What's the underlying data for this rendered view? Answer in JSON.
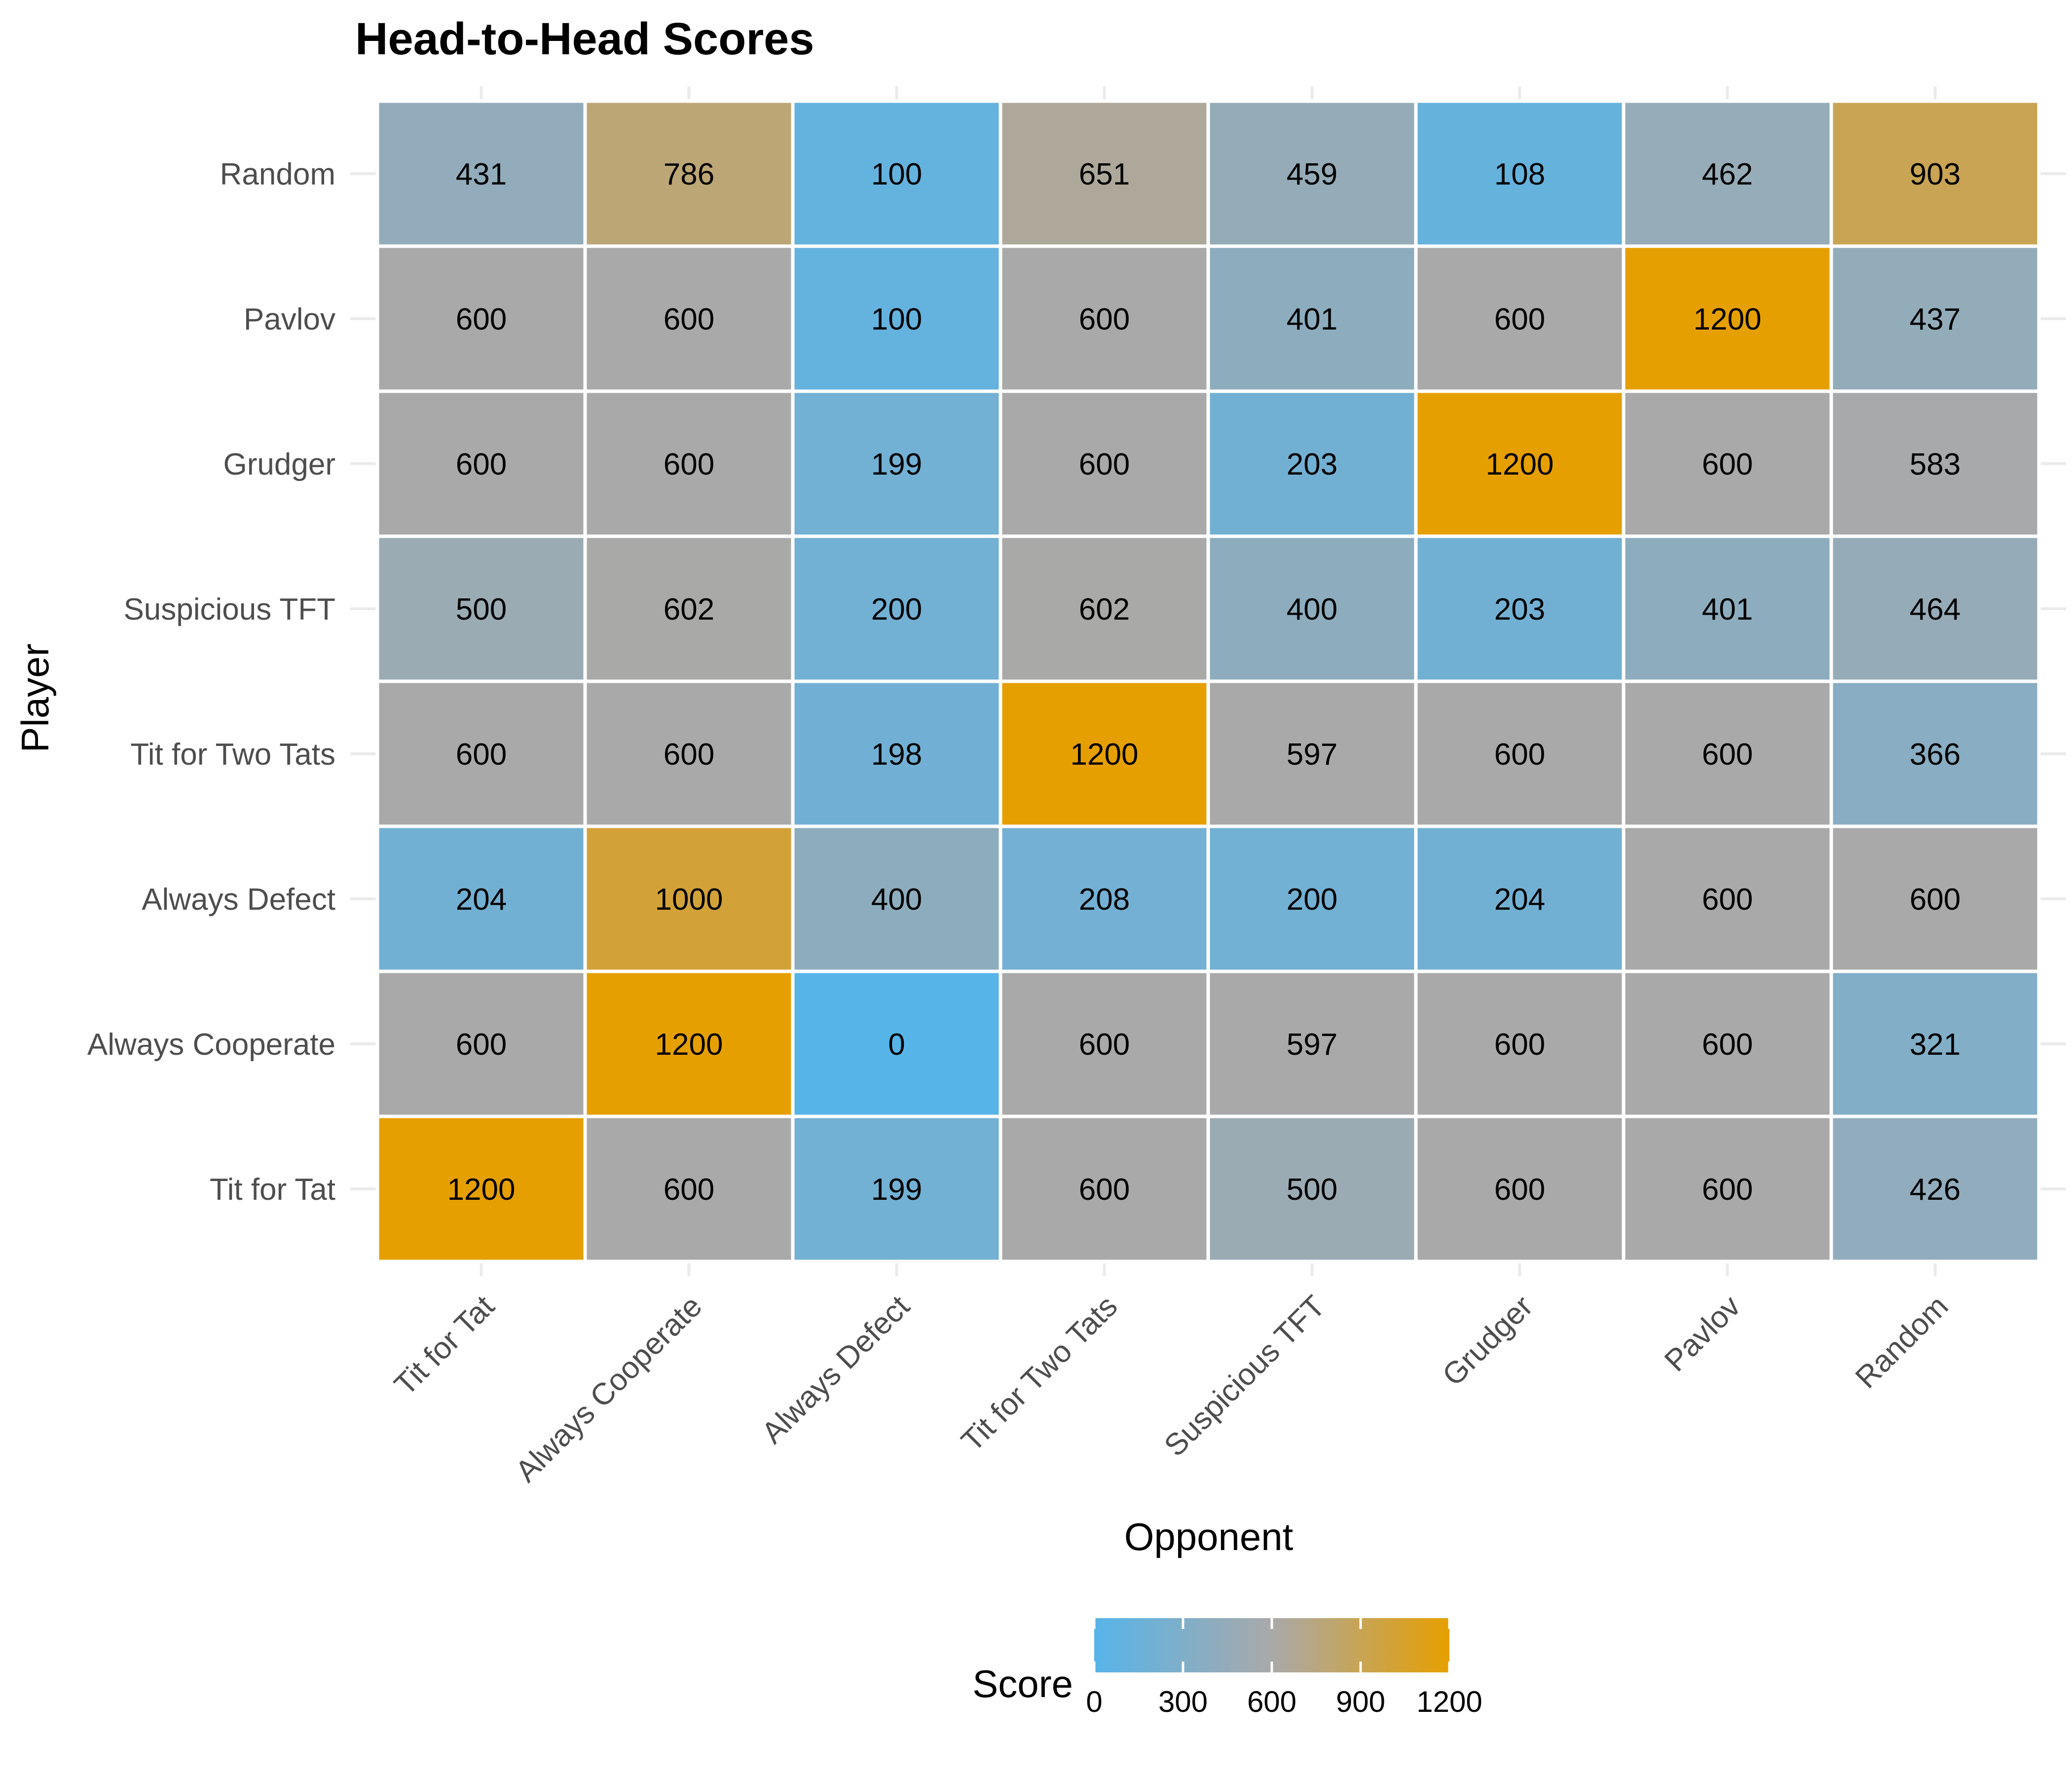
{
  "chart_data": {
    "type": "heatmap",
    "title": "Head-to-Head Scores",
    "xlabel": "Opponent",
    "ylabel": "Player",
    "x_categories": [
      "Tit for Tat",
      "Always Cooperate",
      "Always Defect",
      "Tit for Two Tats",
      "Suspicious TFT",
      "Grudger",
      "Pavlov",
      "Random"
    ],
    "y_categories": [
      "Tit for Tat",
      "Always Cooperate",
      "Always Defect",
      "Tit for Two Tats",
      "Suspicious TFT",
      "Grudger",
      "Pavlov",
      "Random"
    ],
    "values": [
      [
        1200,
        600,
        199,
        600,
        500,
        600,
        600,
        426
      ],
      [
        600,
        1200,
        0,
        600,
        597,
        600,
        600,
        321
      ],
      [
        204,
        1000,
        400,
        208,
        200,
        204,
        600,
        600
      ],
      [
        600,
        600,
        198,
        1200,
        597,
        600,
        600,
        366
      ],
      [
        500,
        602,
        200,
        602,
        400,
        203,
        401,
        464
      ],
      [
        600,
        600,
        199,
        600,
        203,
        1200,
        600,
        583
      ],
      [
        600,
        600,
        100,
        600,
        401,
        600,
        1200,
        437
      ],
      [
        431,
        786,
        100,
        651,
        459,
        108,
        462,
        903
      ]
    ],
    "legend": {
      "title": "Score",
      "position": "bottom",
      "ticks": [
        0,
        300,
        600,
        900,
        1200
      ],
      "range": [
        0,
        1200
      ]
    },
    "colors": {
      "low": "#56B4E9",
      "mid": "#A9A9A9",
      "high": "#E69F00",
      "tile_border": "#ffffff",
      "grid": "#ebebeb",
      "text": "#000000",
      "axis_text": "#4d4d4d"
    }
  }
}
